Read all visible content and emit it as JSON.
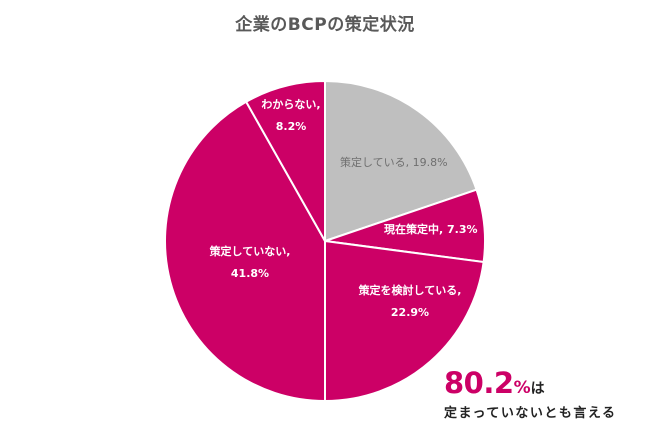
{
  "title": "企業のBCPの策定状況",
  "colors": {
    "accent": "#cc0066",
    "gray": "#bfbfbf",
    "separator": "#ffffff"
  },
  "labels": {
    "s0": {
      "l1": "策定している, 19.8%"
    },
    "s1": {
      "l1": "現在策定中, 7.3%"
    },
    "s2": {
      "l1": "策定を検討している,",
      "l2": "22.9%"
    },
    "s3": {
      "l1": "策定していない,",
      "l2": "41.8%"
    },
    "s4": {
      "l1": "わからない,",
      "l2": "8.2%"
    }
  },
  "callout": {
    "value": "80.2",
    "unit": "%",
    "suffix": "は",
    "text": "定まっていないとも言える"
  },
  "chart_data": {
    "type": "pie",
    "title": "企業のBCPの策定状況",
    "categories": [
      "策定している",
      "現在策定中",
      "策定を検討している",
      "策定していない",
      "わからない"
    ],
    "values": [
      19.8,
      7.3,
      22.9,
      41.8,
      8.2
    ],
    "colors": [
      "#bfbfbf",
      "#cc0066",
      "#cc0066",
      "#cc0066",
      "#cc0066"
    ],
    "start_angle": "12 o'clock, clockwise",
    "data_labels": [
      "策定している, 19.8%",
      "現在策定中, 7.3%",
      "策定を検討している, 22.9%",
      "策定していない, 41.8%",
      "わからない, 8.2%"
    ],
    "annotation": "80.2%は 定まっていないとも言える",
    "legend": "none"
  }
}
